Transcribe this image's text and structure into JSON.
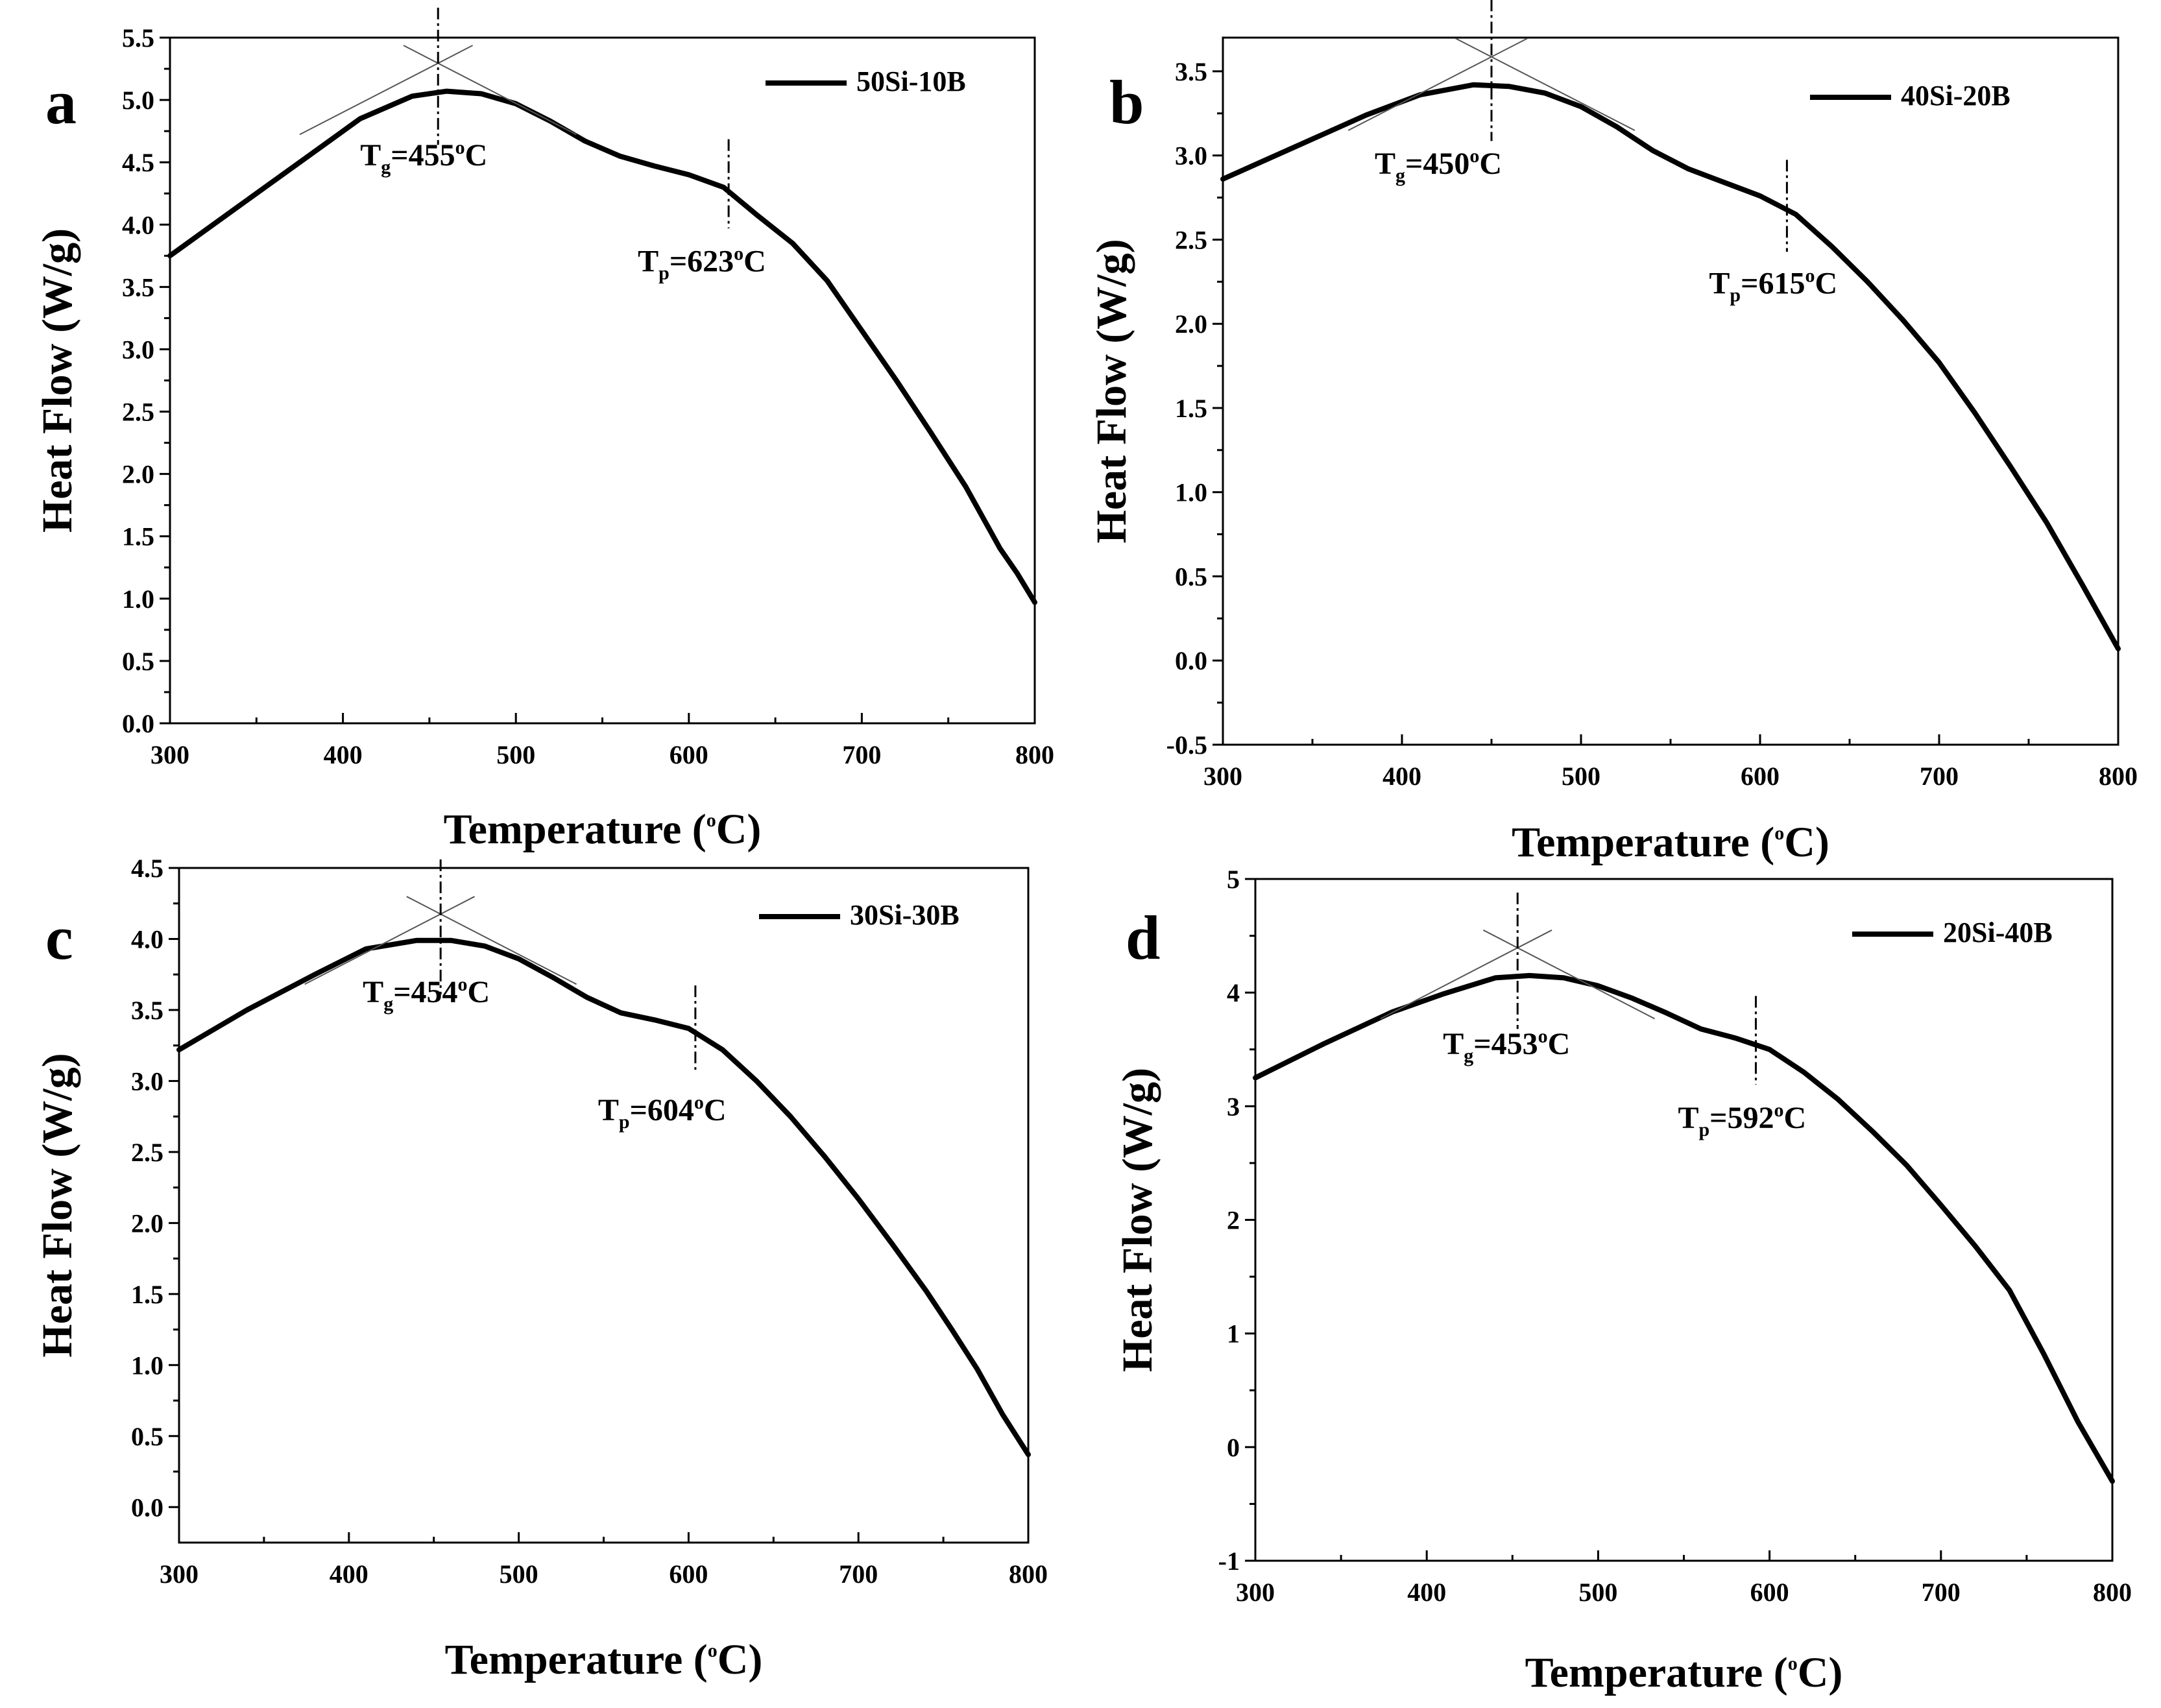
{
  "figure": {
    "x_axis_title": "Temperature (",
    "x_axis_unit_sup": "o",
    "x_axis_unit_end": "C)",
    "y_axis_title": "Heat Flow (W/g)"
  },
  "chart_data": [
    {
      "type": "line",
      "panel": "a",
      "series": [
        {
          "name": "50Si-10B",
          "x": [
            300,
            340,
            380,
            410,
            440,
            460,
            480,
            500,
            520,
            540,
            560,
            580,
            600,
            620,
            640,
            660,
            680,
            700,
            720,
            740,
            760,
            780,
            790,
            800
          ],
          "y": [
            3.75,
            4.15,
            4.55,
            4.85,
            5.03,
            5.07,
            5.05,
            4.97,
            4.83,
            4.67,
            4.55,
            4.47,
            4.4,
            4.3,
            4.07,
            3.85,
            3.55,
            3.15,
            2.75,
            2.33,
            1.9,
            1.4,
            1.2,
            0.97
          ]
        }
      ],
      "xlim": [
        300,
        800
      ],
      "ylim": [
        0.0,
        5.5
      ],
      "xticks": [
        300,
        400,
        500,
        600,
        700,
        800
      ],
      "yticks": [
        0.0,
        0.5,
        1.0,
        1.5,
        2.0,
        2.5,
        3.0,
        3.5,
        4.0,
        4.5,
        5.0,
        5.5
      ],
      "yticklabels": [
        "0.0",
        "0.5",
        "1.0",
        "1.5",
        "2.0",
        "2.5",
        "3.0",
        "3.5",
        "4.0",
        "4.5",
        "5.0",
        "5.5"
      ],
      "tg": {
        "x": 455,
        "y_cross": 5.3,
        "label_pre": "T",
        "label_sub": "g",
        "label_mid": "=455",
        "label_sup": "o",
        "label_end": "C"
      },
      "tp": {
        "x": 623,
        "y": 4.3,
        "label_pre": "T",
        "label_sub": "p",
        "label_mid": "=623",
        "label_sup": "o",
        "label_end": "C"
      }
    },
    {
      "type": "line",
      "panel": "b",
      "series": [
        {
          "name": "40Si-20B",
          "x": [
            300,
            340,
            380,
            410,
            440,
            460,
            480,
            500,
            520,
            540,
            560,
            580,
            600,
            620,
            640,
            660,
            680,
            700,
            720,
            740,
            760,
            780,
            800
          ],
          "y": [
            2.86,
            3.05,
            3.24,
            3.36,
            3.42,
            3.41,
            3.37,
            3.29,
            3.17,
            3.03,
            2.92,
            2.84,
            2.76,
            2.65,
            2.46,
            2.25,
            2.02,
            1.77,
            1.47,
            1.15,
            0.82,
            0.45,
            0.07
          ]
        }
      ],
      "xlim": [
        300,
        800
      ],
      "ylim": [
        -0.5,
        3.7
      ],
      "xticks": [
        300,
        400,
        500,
        600,
        700,
        800
      ],
      "yticks": [
        -0.5,
        0.0,
        0.5,
        1.0,
        1.5,
        2.0,
        2.5,
        3.0,
        3.5
      ],
      "yticklabels": [
        "-0.5",
        "0.0",
        "0.5",
        "1.0",
        "1.5",
        "2.0",
        "2.5",
        "3.0",
        "3.5"
      ],
      "tg": {
        "x": 450,
        "y_cross": 3.59,
        "label_pre": "T",
        "label_sub": "g",
        "label_mid": "=450",
        "label_sup": "o",
        "label_end": "C"
      },
      "tp": {
        "x": 615,
        "y": 2.68,
        "label_pre": "T",
        "label_sub": "p",
        "label_mid": "=615",
        "label_sup": "o",
        "label_end": "C"
      }
    },
    {
      "type": "line",
      "panel": "c",
      "series": [
        {
          "name": "30Si-30B",
          "x": [
            300,
            340,
            380,
            410,
            440,
            460,
            480,
            500,
            520,
            540,
            560,
            580,
            600,
            620,
            640,
            660,
            680,
            700,
            720,
            740,
            755,
            770,
            785,
            800
          ],
          "y": [
            3.22,
            3.5,
            3.75,
            3.93,
            3.99,
            3.99,
            3.95,
            3.86,
            3.73,
            3.59,
            3.48,
            3.43,
            3.37,
            3.22,
            3.0,
            2.75,
            2.47,
            2.17,
            1.85,
            1.52,
            1.25,
            0.97,
            0.65,
            0.37
          ]
        }
      ],
      "xlim": [
        300,
        800
      ],
      "ylim": [
        -0.25,
        4.5
      ],
      "xticks": [
        300,
        400,
        500,
        600,
        700,
        800
      ],
      "yticks": [
        0.0,
        0.5,
        1.0,
        1.5,
        2.0,
        2.5,
        3.0,
        3.5,
        4.0,
        4.5
      ],
      "yticklabels": [
        "0.0",
        "0.5",
        "1.0",
        "1.5",
        "2.0",
        "2.5",
        "3.0",
        "3.5",
        "4.0",
        "4.5"
      ],
      "tg": {
        "x": 454,
        "y_cross": 4.18,
        "label_pre": "T",
        "label_sub": "g",
        "label_mid": "=454",
        "label_sup": "o",
        "label_end": "C"
      },
      "tp": {
        "x": 604,
        "y": 3.34,
        "label_pre": "T",
        "label_sub": "p",
        "label_mid": "=604",
        "label_sup": "o",
        "label_end": "C"
      }
    },
    {
      "type": "line",
      "panel": "d",
      "series": [
        {
          "name": "20Si-40B",
          "x": [
            300,
            340,
            380,
            410,
            440,
            460,
            480,
            500,
            520,
            540,
            560,
            580,
            600,
            620,
            640,
            660,
            680,
            700,
            720,
            740,
            760,
            780,
            800
          ],
          "y": [
            3.25,
            3.55,
            3.83,
            3.99,
            4.13,
            4.15,
            4.13,
            4.06,
            3.95,
            3.82,
            3.68,
            3.6,
            3.5,
            3.3,
            3.06,
            2.78,
            2.48,
            2.13,
            1.77,
            1.38,
            0.82,
            0.22,
            -0.3
          ]
        }
      ],
      "xlim": [
        300,
        800
      ],
      "ylim": [
        -1,
        5
      ],
      "xticks": [
        300,
        400,
        500,
        600,
        700,
        800
      ],
      "yticks": [
        -1,
        0,
        1,
        2,
        3,
        4,
        5
      ],
      "yticklabels": [
        "-1",
        "0",
        "1",
        "2",
        "3",
        "4",
        "5"
      ],
      "tg": {
        "x": 453,
        "y_cross": 4.4,
        "label_pre": "T",
        "label_sub": "g",
        "label_mid": "=453",
        "label_sup": "o",
        "label_end": "C"
      },
      "tp": {
        "x": 592,
        "y": 3.55,
        "label_pre": "T",
        "label_sub": "p",
        "label_mid": "=592",
        "label_sup": "o",
        "label_end": "C"
      }
    }
  ]
}
